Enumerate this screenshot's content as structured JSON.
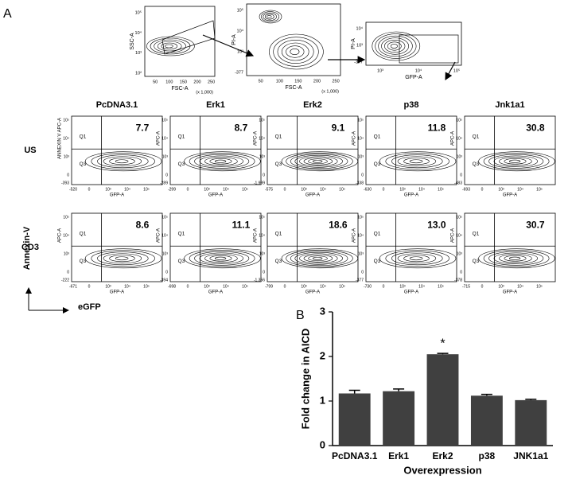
{
  "panel_a": {
    "label": "A",
    "gating": [
      {
        "y_label": "SSC-A",
        "x_label": "FSC-A",
        "x_unit": "(x 1,000)",
        "x_ticks": [
          50,
          100,
          150,
          200,
          250
        ],
        "y_ticks": [
          "10²",
          "10³",
          "10⁴",
          "10⁵"
        ]
      },
      {
        "y_label": "PI-A",
        "x_label": "FSC-A",
        "x_unit": "(x 1,000)",
        "x_ticks": [
          50,
          100,
          150,
          200,
          250
        ],
        "y_ticks": [
          "-377",
          "10³",
          "10⁴",
          "10⁵"
        ]
      },
      {
        "y_label": "PI-A",
        "x_label": "GFP-A",
        "x_ticks": [
          "10³",
          "10⁴",
          "10⁵"
        ],
        "y_ticks": [
          "-377",
          "10³",
          "10⁴"
        ]
      }
    ],
    "columns": [
      "PcDNA3.1",
      "Erk1",
      "Erk2",
      "p38",
      "Jnk1a1"
    ],
    "flow_x_label": "GFP-A",
    "flow_ticks": [
      "0",
      "10³",
      "10⁴",
      "10⁵"
    ],
    "quadrants": [
      "Q1",
      "Q3"
    ],
    "rows": [
      {
        "label": "US",
        "plots": [
          {
            "percent": "7.7",
            "y_label": "ANNEXIN V APC-A",
            "y_min": "-393",
            "x_min": "-520"
          },
          {
            "percent": "8.7",
            "y_label": "APC-A",
            "y_min": "-289",
            "x_min": "-299"
          },
          {
            "percent": "9.1",
            "y_label": "APC-A",
            "y_min": "-1,999",
            "x_min": "-575"
          },
          {
            "percent": "11.8",
            "y_label": "APC-A",
            "y_min": "-338",
            "x_min": "-630"
          },
          {
            "percent": "30.8",
            "y_label": "APC-A",
            "y_min": "-483",
            "x_min": "-693"
          }
        ]
      },
      {
        "label": "CD3",
        "plots": [
          {
            "percent": "8.6",
            "y_label": "APC-A",
            "y_min": "-222",
            "x_min": "-671"
          },
          {
            "percent": "11.1",
            "y_label": "APC-A",
            "y_min": "-394",
            "x_min": "-698"
          },
          {
            "percent": "18.6",
            "y_label": "APC-A",
            "y_min": "-1,356",
            "x_min": "-799"
          },
          {
            "percent": "13.0",
            "y_label": "APC-A",
            "y_min": "-377",
            "x_min": "-730"
          },
          {
            "percent": "30.7",
            "y_label": "APC-A",
            "y_min": "-378",
            "x_min": "-715"
          }
        ]
      }
    ],
    "y_axis_label": "Annexin-V",
    "x_axis_label": "eGFP"
  },
  "chart_data": {
    "type": "bar",
    "panel_label": "B",
    "categories": [
      "PcDNA3.1",
      "Erk1",
      "Erk2",
      "p38",
      "JNK1a1"
    ],
    "values": [
      1.17,
      1.22,
      2.05,
      1.12,
      1.02
    ],
    "errors": [
      0.07,
      0.05,
      0.02,
      0.03,
      0.02
    ],
    "color": "#404040",
    "ylim": [
      0,
      3
    ],
    "yticks": [
      0,
      1,
      2,
      3
    ],
    "y_label": "Fold change in AICD",
    "x_label": "Overexpression",
    "annotations": [
      {
        "text": "*",
        "category": "Erk2"
      }
    ]
  }
}
